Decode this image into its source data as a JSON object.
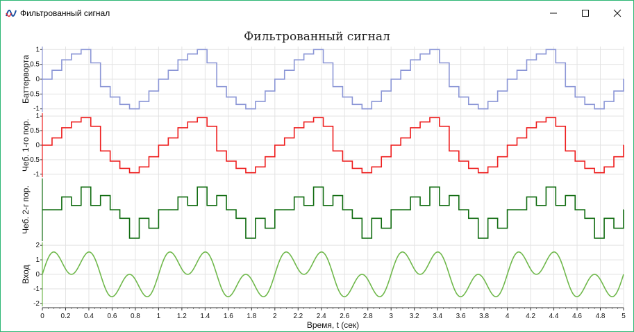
{
  "window": {
    "title": "Фильтрованный сигнал",
    "icon": "waveform-app-icon",
    "controls": [
      "minimize-icon",
      "maximize-icon",
      "close-icon"
    ]
  },
  "chart_data": {
    "type": "line",
    "title": "Фильтрованный сигнал",
    "xlabel": "Время, t (сек)",
    "xlim": [
      0,
      5
    ],
    "x_ticks": [
      "0",
      "0.2",
      "0.4",
      "0.6",
      "0.8",
      "1",
      "1.2",
      "1.4",
      "1.6",
      "1.8",
      "2",
      "2.2",
      "2.4",
      "2.6",
      "2.8",
      "3",
      "3.2",
      "3.4",
      "3.6",
      "3.8",
      "4",
      "4.2",
      "4.4",
      "4.6",
      "4.8",
      "5"
    ],
    "grid": true,
    "panels": [
      {
        "name": "Баттерворта",
        "ylabel": "Баттерворта",
        "color": "#8b96d6",
        "ylim": [
          -1.1,
          1.1
        ],
        "y_ticks": [
          "1",
          "0.5",
          "0",
          "-0.5",
          "-1"
        ],
        "y_tick_values": [
          1,
          0.5,
          0,
          -0.5,
          -1
        ],
        "steps": [
          0,
          0.3,
          0.65,
          0.85,
          1,
          0.55,
          -0.25,
          -0.6,
          -0.85,
          -1,
          -0.75,
          -0.4
        ],
        "step_duration": 0.08333,
        "signal": "staircase"
      },
      {
        "name": "Чеб. 1-го пор.",
        "ylabel": "Чеб. 1-го пор.",
        "color": "#ee1c1c",
        "ylim": [
          -1.1,
          1.1
        ],
        "y_ticks": [
          "1",
          "0.5",
          "0",
          "-0.5",
          "-1"
        ],
        "y_tick_values": [
          1,
          0.5,
          0,
          -0.5,
          -1
        ],
        "steps": [
          0,
          0.25,
          0.6,
          0.8,
          0.95,
          0.65,
          -0.2,
          -0.55,
          -0.8,
          -0.95,
          -0.75,
          -0.4
        ],
        "step_duration": 0.08333,
        "signal": "staircase"
      },
      {
        "name": "Чеб. 2-г пор.",
        "ylabel": "Чеб. 2-г пор.",
        "color": "#0f6b0f",
        "ylim": [
          -1.1,
          1.1
        ],
        "y_ticks": [],
        "y_tick_values": [],
        "steps": [
          0,
          0,
          0.45,
          0.15,
          0.8,
          0.15,
          0.5,
          0,
          -0.3,
          -1,
          -0.3,
          -0.65
        ],
        "step_duration": 0.08333,
        "signal": "staircase"
      },
      {
        "name": "Вход",
        "ylabel": "Вход",
        "color": "#6fb84b",
        "ylim": [
          -2.2,
          2.2
        ],
        "y_ticks": [
          "2",
          "1",
          "0",
          "-1",
          "-2"
        ],
        "y_tick_values": [
          2,
          1,
          0,
          -1,
          -2
        ],
        "signal": "sine_sum",
        "components": [
          {
            "amp": 1,
            "freq": 1
          },
          {
            "amp": 1,
            "freq": 3
          }
        ]
      }
    ]
  }
}
